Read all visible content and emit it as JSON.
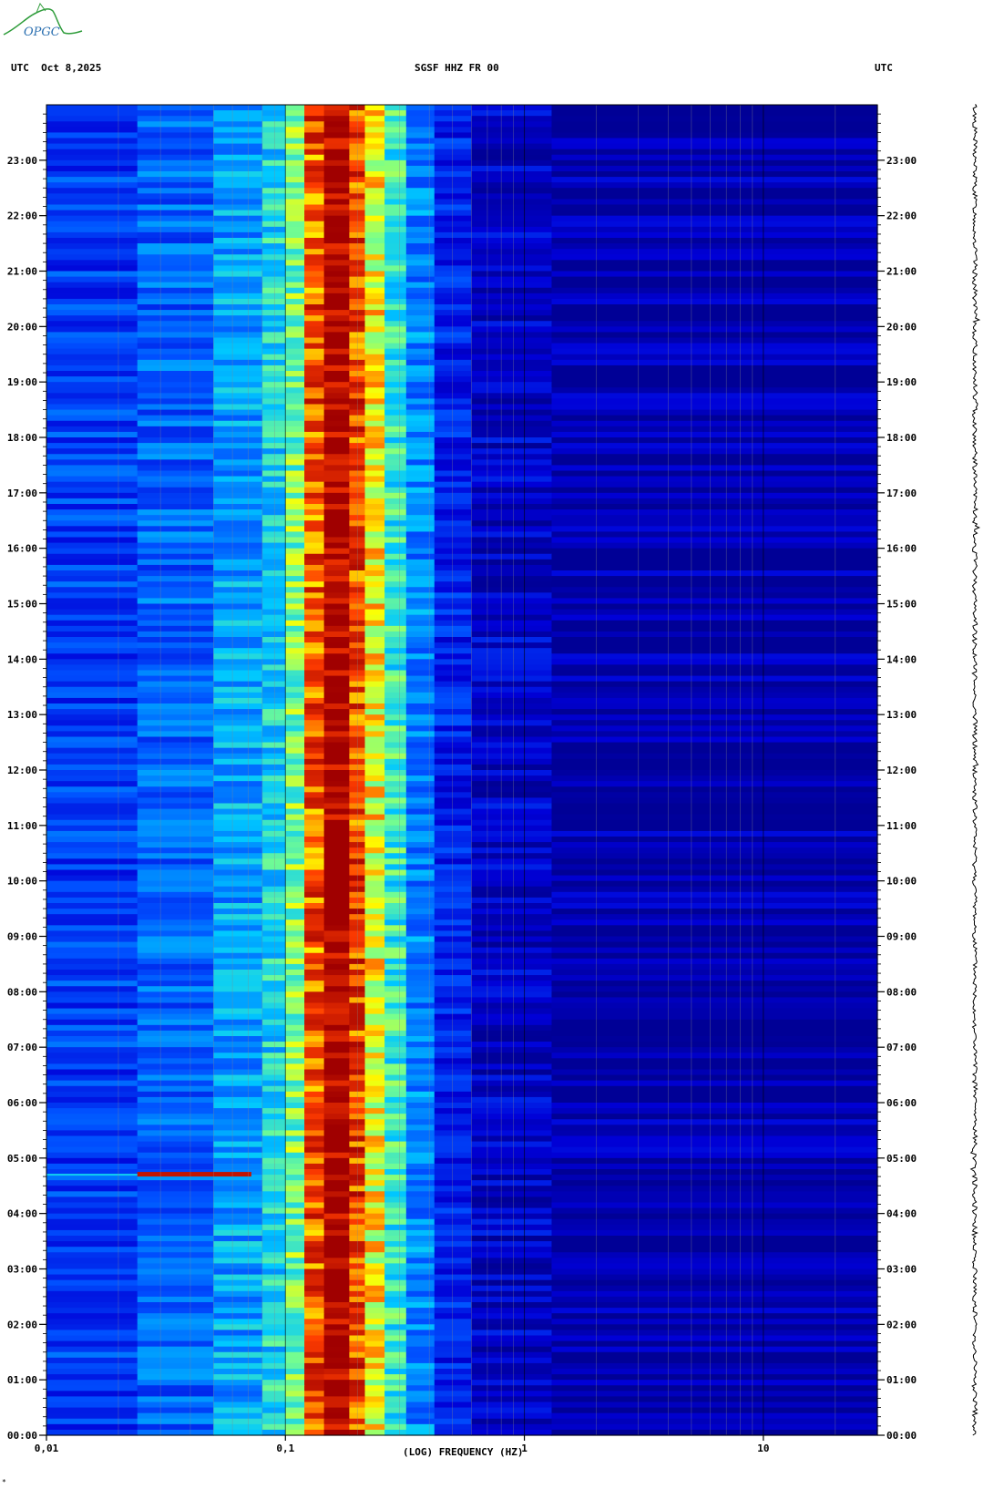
{
  "header": {
    "left": "UTC  Oct 8,2025",
    "center": "SGSF HHZ FR 00",
    "right": "UTC"
  },
  "logo": {
    "text": "OPGC"
  },
  "colors": {
    "background_low": "#0000b4",
    "mid": "#00c8ff",
    "high": "#ffff00",
    "peak": "#a00000"
  },
  "chart_data": {
    "type": "heatmap",
    "title": "SGSF HHZ FR 00",
    "xlabel": "(LOG) FREQUENCY (HZ)",
    "ylabel": "UTC",
    "x_scale": "log",
    "xlim": [
      0.01,
      30
    ],
    "ylim_hours": [
      0,
      24
    ],
    "x_tick_labels": [
      "0,01",
      "0,1",
      "1",
      "10"
    ],
    "x_tick_values": [
      0.01,
      0.1,
      1,
      10
    ],
    "y_tick_labels": [
      "00:00",
      "01:00",
      "02:00",
      "03:00",
      "04:00",
      "05:00",
      "06:00",
      "07:00",
      "08:00",
      "09:00",
      "10:00",
      "11:00",
      "12:00",
      "13:00",
      "14:00",
      "15:00",
      "16:00",
      "17:00",
      "18:00",
      "19:00",
      "20:00",
      "21:00",
      "22:00",
      "23:00"
    ],
    "bands": [
      {
        "from_hz": 0.01,
        "to_hz": 0.024,
        "level": 0.25
      },
      {
        "from_hz": 0.024,
        "to_hz": 0.05,
        "level": 0.32
      },
      {
        "from_hz": 0.05,
        "to_hz": 0.08,
        "level": 0.42
      },
      {
        "from_hz": 0.08,
        "to_hz": 0.1,
        "level": 0.5
      },
      {
        "from_hz": 0.1,
        "to_hz": 0.12,
        "level": 0.62
      },
      {
        "from_hz": 0.12,
        "to_hz": 0.145,
        "level": 0.86
      },
      {
        "from_hz": 0.145,
        "to_hz": 0.185,
        "level": 1.0
      },
      {
        "from_hz": 0.185,
        "to_hz": 0.215,
        "level": 0.88
      },
      {
        "from_hz": 0.215,
        "to_hz": 0.26,
        "level": 0.72
      },
      {
        "from_hz": 0.26,
        "to_hz": 0.32,
        "level": 0.55
      },
      {
        "from_hz": 0.32,
        "to_hz": 0.42,
        "level": 0.38
      },
      {
        "from_hz": 0.42,
        "to_hz": 0.6,
        "level": 0.2
      },
      {
        "from_hz": 0.6,
        "to_hz": 1.3,
        "level": 0.1
      },
      {
        "from_hz": 1.3,
        "to_hz": 30,
        "level": 0.04
      }
    ],
    "event": {
      "time_hours": 4.7,
      "from_hz": 0.024,
      "to_hz": 0.072,
      "level": 0.95
    }
  }
}
